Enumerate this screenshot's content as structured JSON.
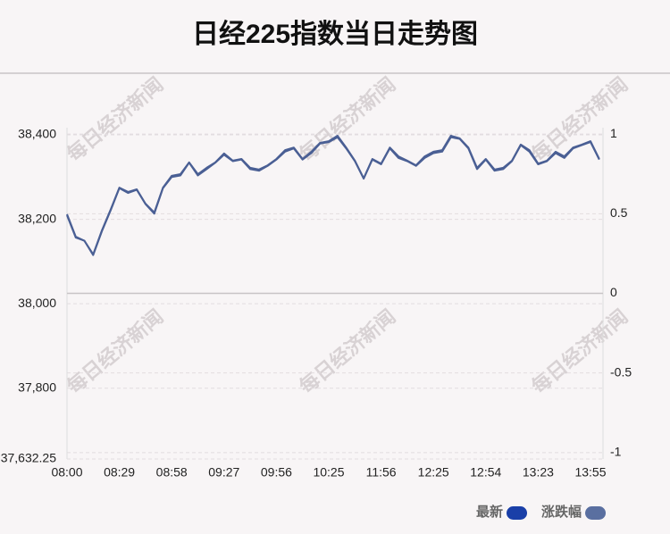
{
  "chart_data": {
    "type": "line",
    "title": "日经225指数当日走势图",
    "watermark": "每日经济新闻",
    "categories": [
      "08:00",
      null,
      null,
      null,
      null,
      null,
      "08:29",
      null,
      null,
      null,
      null,
      null,
      "08:58",
      null,
      null,
      null,
      null,
      null,
      "09:27",
      null,
      null,
      null,
      null,
      null,
      "09:56",
      null,
      null,
      null,
      null,
      null,
      "10:25",
      null,
      null,
      null,
      null,
      null,
      "11:56",
      null,
      null,
      null,
      null,
      null,
      "12:25",
      null,
      null,
      null,
      null,
      null,
      "12:54",
      null,
      null,
      null,
      null,
      null,
      "13:23",
      null,
      null,
      null,
      null,
      null,
      "13:55",
      null
    ],
    "series": [
      {
        "name": "最新",
        "color": "#1a3fa8",
        "line_color": "#4a5f94",
        "values": [
          38212,
          38159,
          38149,
          38117,
          38174,
          38223,
          38275,
          38265,
          38271,
          38237,
          38216,
          38275,
          38303,
          38307,
          38335,
          38307,
          38322,
          38335,
          38356,
          38339,
          38343,
          38322,
          38318,
          38328,
          38343,
          38364,
          38370,
          38343,
          38360,
          38381,
          38385,
          38398,
          38370,
          38339,
          38297,
          38343,
          38332,
          38370,
          38349,
          38339,
          38328,
          38349,
          38360,
          38364,
          38398,
          38392,
          38370,
          38322,
          38343,
          38318,
          38322,
          38339,
          38377,
          38364,
          38332,
          38339,
          38360,
          38349,
          38370,
          38377,
          38385,
          38343
        ]
      },
      {
        "name": "涨跌幅",
        "color": "#5a6fa0",
        "line_color": "#4a5f94",
        "axis": "y2",
        "values": [
          0.49,
          0.35,
          0.33,
          0.24,
          0.39,
          0.52,
          0.66,
          0.63,
          0.65,
          0.56,
          0.5,
          0.66,
          0.73,
          0.74,
          0.82,
          0.74,
          0.78,
          0.82,
          0.87,
          0.83,
          0.84,
          0.78,
          0.77,
          0.8,
          0.84,
          0.89,
          0.91,
          0.84,
          0.88,
          0.94,
          0.95,
          0.98,
          0.91,
          0.83,
          0.72,
          0.84,
          0.81,
          0.91,
          0.85,
          0.83,
          0.8,
          0.85,
          0.88,
          0.89,
          0.98,
          0.97,
          0.91,
          0.78,
          0.84,
          0.77,
          0.78,
          0.83,
          0.93,
          0.89,
          0.81,
          0.83,
          0.88,
          0.85,
          0.91,
          0.93,
          0.95,
          0.84
        ]
      }
    ],
    "ylim": [
      37632.25,
      38417
    ],
    "yticks": [
      {
        "value": 38400,
        "label": "38,400"
      },
      {
        "value": 38200,
        "label": "38,200"
      },
      {
        "value": 38000,
        "label": "38,000"
      },
      {
        "value": 37800,
        "label": "37,800"
      },
      {
        "value": 37632.25,
        "label": "37,632.25"
      }
    ],
    "y2lim": [
      -1.04,
      1.04
    ],
    "y2ticks": [
      1,
      0.5,
      0,
      -0.5,
      -1
    ],
    "grid": true
  }
}
